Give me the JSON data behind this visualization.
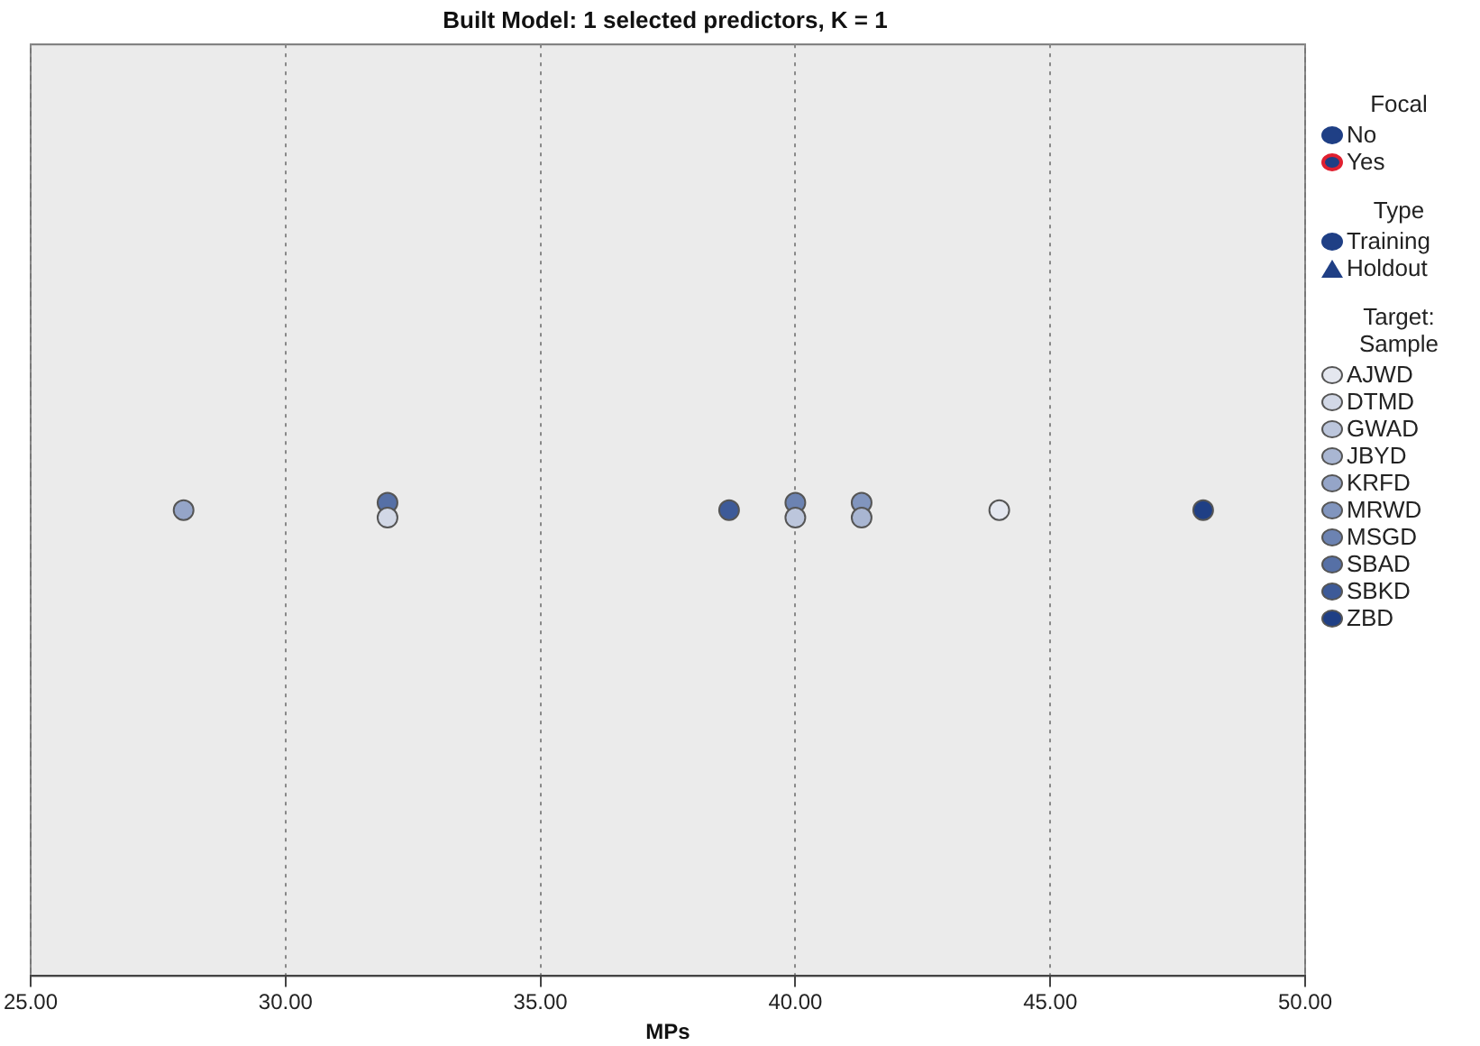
{
  "chart_data": {
    "type": "scatter",
    "title": "Built Model: 1 selected predictors, K = 1",
    "xlabel": "MPs",
    "legend_title": "Target: Sample",
    "annotations": [
      "Focal",
      "Type"
    ],
    "orientation": "horizontal",
    "categories": [
      null
    ],
    "grid": "x",
    "legend": "right",
    "marker": "circle",
    "xlim": [
      25,
      50
    ],
    "xticks": [
      {
        "value": 25,
        "label": "25.00"
      },
      {
        "value": 30,
        "label": "30.00"
      },
      {
        "value": 35,
        "label": "35.00"
      },
      {
        "value": 40,
        "label": "40.00"
      },
      {
        "value": 45,
        "label": "45.00"
      },
      {
        "value": 50,
        "label": "50.00"
      }
    ],
    "series": [
      {
        "name": "No",
        "color": "#1f3f85",
        "values": [
          null
        ]
      },
      {
        "name": "Yes",
        "color": "#e02030",
        "values": [
          null
        ]
      },
      {
        "name": "Training",
        "color": "#1f3f85",
        "values": [
          null
        ]
      },
      {
        "name": "Holdout",
        "color": "#1f3f85",
        "marker": "triangle",
        "values": [
          null
        ]
      },
      {
        "name": "AJWD",
        "color": "#e4e7ef",
        "values": [
          44.0
        ]
      },
      {
        "name": "DTMD",
        "color": "#d2d8e6",
        "values": [
          32.0
        ]
      },
      {
        "name": "GWAD",
        "color": "#bcc6dc",
        "values": [
          40.0
        ]
      },
      {
        "name": "JBYD",
        "color": "#a9b6d2",
        "values": [
          41.3
        ]
      },
      {
        "name": "KRFD",
        "color": "#95a5c8",
        "values": [
          28.0
        ]
      },
      {
        "name": "MRWD",
        "color": "#8195be",
        "values": [
          41.3
        ]
      },
      {
        "name": "MSGD",
        "color": "#6c83b2",
        "values": [
          40.0
        ]
      },
      {
        "name": "SBAD",
        "color": "#5670a6",
        "values": [
          32.0
        ]
      },
      {
        "name": "SBKD",
        "color": "#3d5a98",
        "values": [
          38.7
        ]
      },
      {
        "name": "ZBD",
        "color": "#1f3f85",
        "values": [
          48.0
        ]
      }
    ]
  }
}
